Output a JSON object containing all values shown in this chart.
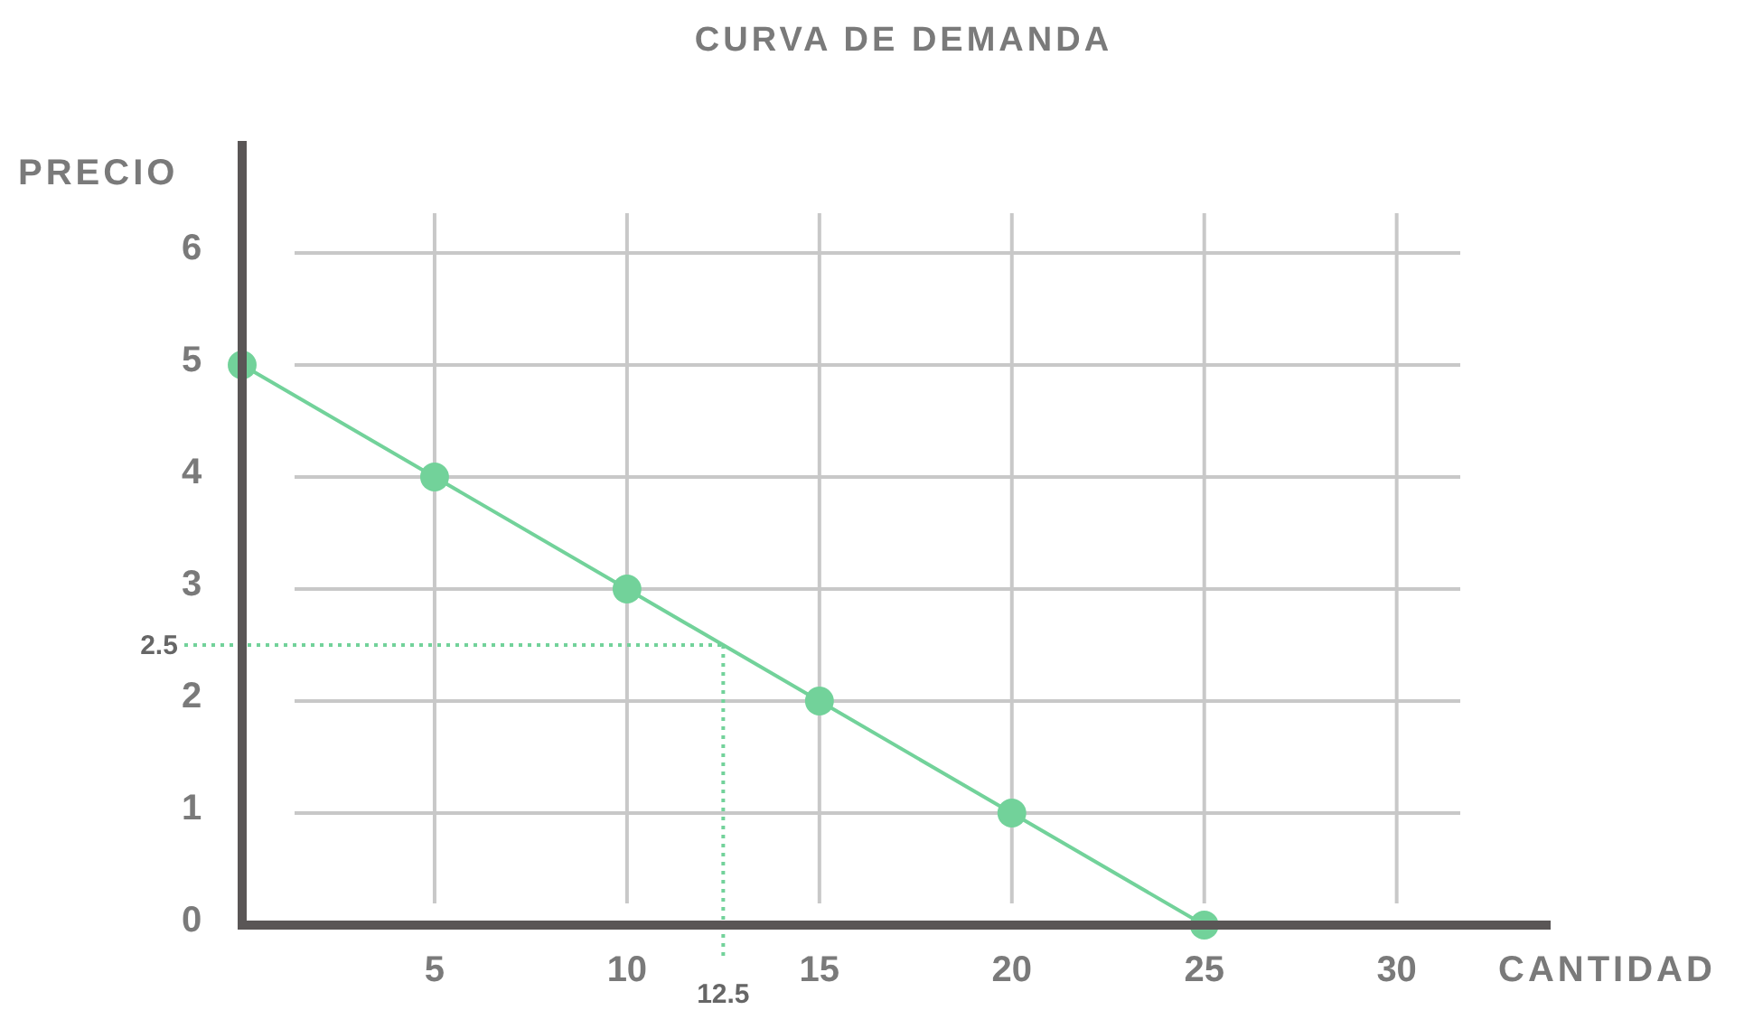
{
  "chart_data": {
    "type": "line",
    "title": "CURVA DE DEMANDA",
    "xlabel": "CANTIDAD",
    "ylabel": "PRECIO",
    "x": [
      0,
      5,
      10,
      15,
      20,
      25
    ],
    "series": [
      {
        "color": "#72d29a",
        "values": [
          5,
          4,
          3,
          2,
          1,
          0
        ]
      }
    ],
    "xlim": [
      0,
      34
    ],
    "xticks": [
      5,
      10,
      15,
      20,
      25,
      30
    ],
    "ylim": [
      0,
      7
    ],
    "yticks": [
      0,
      1,
      2,
      3,
      4,
      5,
      6
    ],
    "grid": true,
    "marker": "circle",
    "line_style": "solid",
    "ref_lines": [
      {
        "axis": "y",
        "value": 2.5,
        "label": "2.5",
        "color": "#72d29a",
        "line_style": "dotted"
      },
      {
        "axis": "x",
        "value": 12.5,
        "label": "12.5",
        "color": "#72d29a",
        "line_style": "dotted"
      }
    ]
  }
}
